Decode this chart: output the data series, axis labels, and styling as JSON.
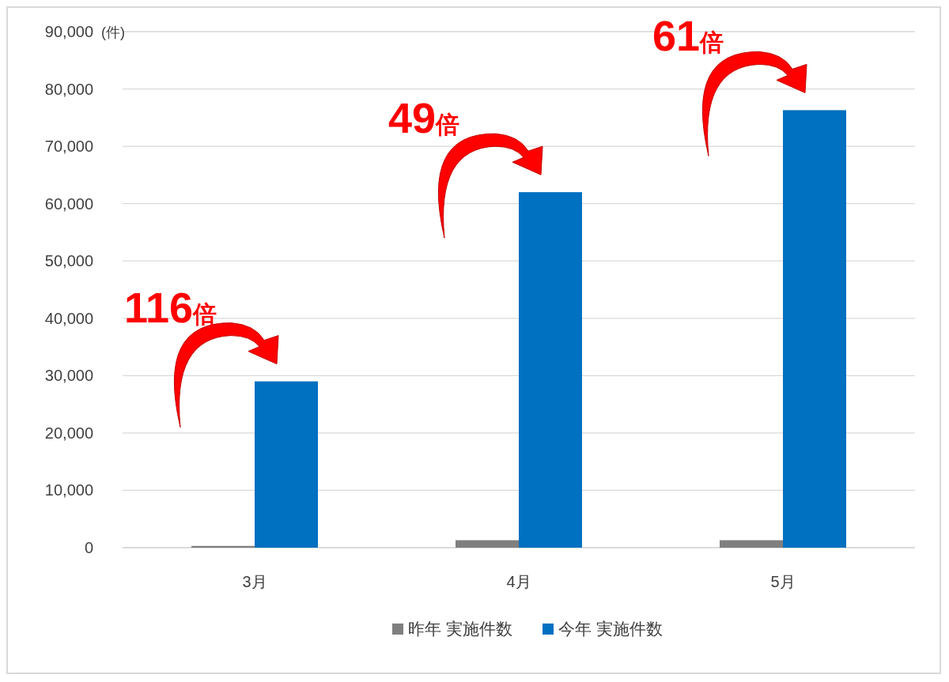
{
  "chart_data": {
    "type": "bar",
    "ylabel": "(件)",
    "categories": [
      "3月",
      "4月",
      "5月"
    ],
    "series": [
      {
        "name": "昨年 実施件数",
        "color": "#7f7f7f",
        "values": [
          300,
          1300,
          1300
        ]
      },
      {
        "name": "今年 実施件数",
        "color": "#0070c0",
        "values": [
          29000,
          62000,
          76300
        ]
      }
    ],
    "ylim": [
      0,
      90000
    ],
    "yticks": [
      {
        "value": 0,
        "label": "0"
      },
      {
        "value": 10000,
        "label": "10,000"
      },
      {
        "value": 20000,
        "label": "20,000"
      },
      {
        "value": 30000,
        "label": "30,000"
      },
      {
        "value": 40000,
        "label": "40,000"
      },
      {
        "value": 50000,
        "label": "50,000"
      },
      {
        "value": 60000,
        "label": "60,000"
      },
      {
        "value": 70000,
        "label": "70,000"
      },
      {
        "value": 80000,
        "label": "80,000"
      },
      {
        "value": 90000,
        "label": "90,000"
      }
    ],
    "grid": "y",
    "legend": "bottom",
    "annotations": [
      {
        "text": "116倍",
        "x": "3月",
        "y": 29000
      },
      {
        "text": "49倍",
        "x": "4月",
        "y": 62000
      },
      {
        "text": "61倍",
        "x": "5月",
        "y": 76300
      }
    ]
  }
}
